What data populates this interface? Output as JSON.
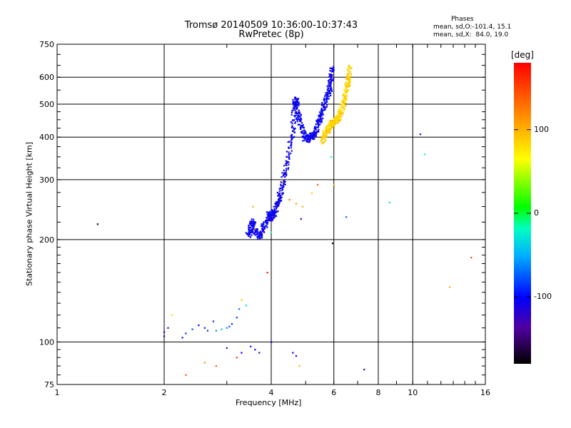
{
  "title_line1": "Tromsø 20140509 10:36:00-10:37:43",
  "title_line2": "RwPretec (8p)",
  "phases": {
    "heading": "Phases",
    "o_line": "mean, sd,O:-101.4, 15.1",
    "x_line": "mean, sd,X:  84.0, 19.0"
  },
  "colorbar": {
    "unit": "[deg]",
    "ticks": [
      "100",
      "0",
      "-100"
    ],
    "tick_values": [
      100,
      0,
      -100
    ],
    "range": [
      -180,
      180
    ]
  },
  "chart_data": {
    "type": "scatter",
    "title": "Tromsø 20140509 10:36:00-10:37:43",
    "subtitle": "RwPretec (8p)",
    "xlabel": "Frequency [MHz]",
    "ylabel": "Stationary phase Virtual Height [km]",
    "xscale": "log",
    "yscale": "log",
    "xlim": [
      1,
      16
    ],
    "ylim": [
      75,
      750
    ],
    "xticks": [
      1,
      2,
      4,
      6,
      8,
      10,
      16
    ],
    "xtick_labels": [
      "1",
      "2",
      "4",
      "6",
      "8",
      "10",
      "16"
    ],
    "xgrid": [
      2,
      4,
      6,
      8,
      10
    ],
    "yticks": [
      75,
      100,
      200,
      300,
      400,
      500,
      600,
      750
    ],
    "ytick_labels": [
      "75",
      "100",
      "200",
      "300",
      "400",
      "500",
      "600",
      "750"
    ],
    "ygrid": [
      100,
      200,
      300,
      400,
      500,
      600
    ],
    "grid": true,
    "series": [
      {
        "name": "O",
        "trace": [
          [
            3.45,
            205
          ],
          [
            3.5,
            215
          ],
          [
            3.55,
            225
          ],
          [
            3.6,
            212
          ],
          [
            3.7,
            205
          ],
          [
            3.8,
            215
          ],
          [
            3.9,
            228
          ],
          [
            3.95,
            238
          ],
          [
            4.0,
            232
          ],
          [
            4.08,
            240
          ],
          [
            4.15,
            252
          ],
          [
            4.22,
            268
          ],
          [
            4.3,
            290
          ],
          [
            4.4,
            320
          ],
          [
            4.5,
            370
          ],
          [
            4.6,
            420
          ],
          [
            4.65,
            490
          ],
          [
            4.7,
            520
          ],
          [
            4.75,
            470
          ],
          [
            4.85,
            430
          ],
          [
            4.95,
            400
          ],
          [
            5.05,
            395
          ],
          [
            5.15,
            398
          ],
          [
            5.25,
            405
          ],
          [
            5.35,
            420
          ],
          [
            5.45,
            445
          ],
          [
            5.55,
            470
          ],
          [
            5.65,
            500
          ],
          [
            5.75,
            530
          ],
          [
            5.85,
            560
          ],
          [
            5.9,
            600
          ],
          [
            5.95,
            640
          ]
        ],
        "spread": [
          0.03,
          0.05
        ],
        "phase": -105
      },
      {
        "name": "X",
        "trace": [
          [
            5.55,
            390
          ],
          [
            5.65,
            405
          ],
          [
            5.75,
            420
          ],
          [
            5.85,
            430
          ],
          [
            5.95,
            440
          ],
          [
            6.05,
            445
          ],
          [
            6.15,
            455
          ],
          [
            6.25,
            470
          ],
          [
            6.35,
            495
          ],
          [
            6.45,
            530
          ],
          [
            6.55,
            565
          ],
          [
            6.6,
            600
          ],
          [
            6.65,
            640
          ]
        ],
        "spread": [
          0.03,
          0.05
        ],
        "phase": 85
      },
      {
        "name": "lower echoes",
        "points": [
          [
            2.0,
            107,
            -100
          ],
          [
            2.0,
            104,
            -110
          ],
          [
            2.05,
            110,
            -120
          ],
          [
            2.1,
            120,
            80
          ],
          [
            2.25,
            103,
            -100
          ],
          [
            2.3,
            106,
            -90
          ],
          [
            2.4,
            109,
            -80
          ],
          [
            2.5,
            112,
            -100
          ],
          [
            2.6,
            110,
            -90
          ],
          [
            2.65,
            108,
            -85
          ],
          [
            2.75,
            115,
            -90
          ],
          [
            2.8,
            108,
            -60
          ],
          [
            2.9,
            109,
            -40
          ],
          [
            3.0,
            110,
            -60
          ],
          [
            3.05,
            111,
            -80
          ],
          [
            3.1,
            113,
            -90
          ],
          [
            3.2,
            118,
            -85
          ],
          [
            3.25,
            125,
            -70
          ],
          [
            3.3,
            133,
            90
          ],
          [
            3.4,
            128,
            -30
          ],
          [
            3.5,
            97,
            -100
          ],
          [
            3.6,
            95,
            -110
          ],
          [
            3.7,
            93,
            -120
          ],
          [
            4.0,
            100,
            -100
          ],
          [
            4.6,
            93,
            -100
          ],
          [
            4.7,
            91,
            -110
          ],
          [
            3.3,
            93,
            -100
          ],
          [
            3.0,
            96,
            -130
          ]
        ]
      },
      {
        "name": "scattered",
        "points": [
          [
            1.3,
            222,
            -170
          ],
          [
            2.3,
            80,
            140
          ],
          [
            2.6,
            87,
            120
          ],
          [
            2.8,
            85,
            140
          ],
          [
            3.2,
            90,
            160
          ],
          [
            3.55,
            250,
            100
          ],
          [
            3.6,
            215,
            120
          ],
          [
            3.9,
            160,
            170
          ],
          [
            4.0,
            210,
            -20
          ],
          [
            4.3,
            295,
            100
          ],
          [
            4.5,
            262,
            130
          ],
          [
            4.7,
            255,
            110
          ],
          [
            4.85,
            230,
            -110
          ],
          [
            4.9,
            250,
            100
          ],
          [
            4.8,
            85,
            100
          ],
          [
            5.2,
            274,
            90
          ],
          [
            5.4,
            290,
            140
          ],
          [
            5.9,
            350,
            -20
          ],
          [
            5.95,
            195,
            -170
          ],
          [
            6.0,
            290,
            100
          ],
          [
            6.5,
            233,
            -70
          ],
          [
            7.3,
            83,
            -120
          ],
          [
            8.6,
            257,
            -30
          ],
          [
            10.5,
            408,
            -130
          ],
          [
            10.8,
            356,
            -20
          ],
          [
            12.7,
            145,
            100
          ],
          [
            14.6,
            177,
            150
          ]
        ]
      }
    ]
  }
}
